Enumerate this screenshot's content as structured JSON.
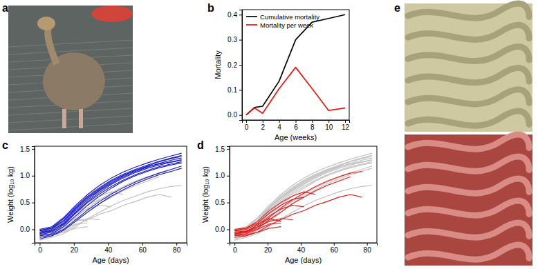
{
  "panel_labels": [
    "a",
    "b",
    "c",
    "d",
    "e"
  ],
  "chart_data": [
    {
      "type": "line",
      "xlabel": "Age (weeks)",
      "ylabel": "Mortality",
      "x": [
        0,
        1,
        2,
        4,
        6,
        8,
        10,
        12
      ],
      "series": [
        {
          "name": "Cumulative mortality",
          "color": "#000000",
          "values": [
            0,
            0.03,
            0.035,
            0.135,
            0.3,
            0.37,
            0.385,
            0.4
          ]
        },
        {
          "name": "Mortality per week",
          "color": "#e8170f",
          "values": [
            0,
            0.028,
            0.007,
            0.105,
            0.19,
            0.105,
            0.018,
            0.028
          ]
        }
      ],
      "xlim": [
        -0.5,
        12.5
      ],
      "xticks": [
        0,
        2,
        4,
        6,
        8,
        10,
        12
      ],
      "ylim": [
        -0.02,
        0.42
      ],
      "yticks": [
        {
          "value": 0,
          "label": "0.0"
        },
        {
          "value": 0.1,
          "label": "0.1"
        },
        {
          "value": 0.2,
          "label": "0.2"
        },
        {
          "value": 0.3,
          "label": "0.3"
        },
        {
          "value": 0.4,
          "label": "0.4"
        }
      ],
      "legend": "upper left"
    },
    {
      "type": "line",
      "xlabel": "Age (days)",
      "ylabel": "Weight (log₁₀ kg)",
      "x": [
        0,
        7,
        14,
        21,
        28,
        35,
        42,
        49,
        56,
        63,
        70,
        77,
        83
      ],
      "series": [
        {
          "color": "#bdbdbd",
          "values": [
            -0.05,
            -0.03,
            0.05,
            0.15,
            0.2,
            0.18,
            null,
            null,
            null,
            null,
            null,
            null,
            null
          ]
        },
        {
          "color": "#bdbdbd",
          "values": [
            -0.1,
            -0.08,
            0.0,
            0.1,
            0.12,
            null,
            null,
            null,
            null,
            null,
            null,
            null,
            null
          ]
        },
        {
          "color": "#bdbdbd",
          "values": [
            -0.02,
            0.02,
            0.15,
            0.35,
            0.5,
            0.62,
            0.7,
            0.65,
            null,
            null,
            null,
            null,
            null
          ]
        },
        {
          "color": "#bdbdbd",
          "values": [
            -0.08,
            -0.05,
            0.05,
            0.22,
            0.4,
            0.55,
            0.68,
            0.8,
            0.9,
            0.98,
            1.05,
            1.08,
            null
          ]
        },
        {
          "color": "#bdbdbd",
          "values": [
            -0.12,
            -0.1,
            -0.05,
            0.02,
            0.05,
            null,
            null,
            null,
            null,
            null,
            null,
            null,
            null
          ]
        },
        {
          "color": "#bdbdbd",
          "values": [
            0.0,
            0.03,
            0.12,
            0.3,
            0.45,
            0.56,
            0.6,
            null,
            null,
            null,
            null,
            null,
            null
          ]
        },
        {
          "color": "#bdbdbd",
          "values": [
            -0.06,
            -0.04,
            0.08,
            0.25,
            0.38,
            0.45,
            0.42,
            null,
            null,
            null,
            null,
            null,
            null
          ]
        },
        {
          "color": "#bdbdbd",
          "values": [
            -0.15,
            -0.12,
            -0.05,
            0.08,
            0.18,
            0.28,
            0.35,
            0.45,
            0.52,
            0.6,
            0.65,
            0.6,
            null
          ]
        },
        {
          "color": "#bdbdbd",
          "values": [
            -0.03,
            0.0,
            0.1,
            0.2,
            0.15,
            null,
            null,
            null,
            null,
            null,
            null,
            null,
            null
          ]
        },
        {
          "color": "#bdbdbd",
          "values": [
            -0.09,
            -0.06,
            0.02,
            0.18,
            0.32,
            0.48,
            0.6,
            0.72,
            0.82,
            0.9,
            0.98,
            null,
            null
          ]
        },
        {
          "color": "#bdbdbd",
          "values": [
            -0.2,
            -0.15,
            -0.08,
            0.05,
            0.2,
            0.32,
            0.44,
            0.54,
            0.62,
            0.7,
            0.76,
            0.8,
            0.82
          ]
        },
        {
          "color": "#1414c8",
          "values": [
            -0.08,
            -0.03,
            0.12,
            0.35,
            0.55,
            0.72,
            0.86,
            0.98,
            1.08,
            1.16,
            1.23,
            1.29,
            1.33
          ]
        },
        {
          "color": "#1414c8",
          "values": [
            -0.02,
            0.03,
            0.2,
            0.42,
            0.62,
            0.78,
            0.92,
            1.03,
            1.12,
            1.2,
            1.27,
            1.33,
            1.38
          ]
        },
        {
          "color": "#1414c8",
          "values": [
            -0.12,
            -0.08,
            0.05,
            0.25,
            0.45,
            0.62,
            0.77,
            0.9,
            1.0,
            1.08,
            1.15,
            1.2,
            1.24
          ]
        },
        {
          "color": "#1414c8",
          "values": [
            -0.05,
            0.0,
            0.15,
            0.38,
            0.58,
            0.74,
            0.88,
            1.0,
            1.1,
            1.18,
            1.26,
            1.32,
            1.36
          ]
        },
        {
          "color": "#1414c8",
          "values": [
            -0.1,
            -0.05,
            0.08,
            0.3,
            0.5,
            0.66,
            0.8,
            0.92,
            1.02,
            1.1,
            1.17,
            1.22,
            1.26
          ]
        },
        {
          "color": "#1414c8",
          "values": [
            0.0,
            0.05,
            0.22,
            0.45,
            0.65,
            0.82,
            0.96,
            1.07,
            1.16,
            1.24,
            1.31,
            1.37,
            1.42
          ]
        },
        {
          "color": "#1414c8",
          "values": [
            -0.15,
            -0.1,
            0.0,
            0.18,
            0.36,
            0.52,
            0.66,
            0.78,
            0.88,
            0.97,
            1.05,
            1.12,
            1.18
          ]
        },
        {
          "color": "#1414c8",
          "values": [
            -0.06,
            -0.02,
            0.1,
            0.32,
            0.52,
            0.69,
            0.84,
            0.96,
            1.06,
            1.14,
            1.2,
            1.25,
            1.29
          ]
        },
        {
          "color": "#1414c8",
          "values": [
            -0.03,
            0.02,
            0.17,
            0.4,
            0.6,
            0.76,
            0.9,
            1.01,
            1.1,
            1.17,
            1.22,
            1.26,
            1.3
          ]
        },
        {
          "color": "#1414c8",
          "values": [
            -0.18,
            -0.12,
            -0.02,
            0.15,
            0.32,
            0.48,
            0.62,
            0.74,
            0.85,
            0.94,
            1.02,
            1.08,
            1.14
          ]
        }
      ],
      "xlim": [
        -3,
        86
      ],
      "xticks": [
        0,
        20,
        40,
        60,
        80
      ],
      "ylim": [
        -0.25,
        1.55
      ],
      "yticks": [
        {
          "value": 0,
          "label": "0.0"
        },
        {
          "value": 0.5,
          "label": "0.5"
        },
        {
          "value": 1,
          "label": "1.0"
        },
        {
          "value": 1.5,
          "label": "1.5"
        }
      ]
    },
    {
      "type": "line",
      "xlabel": "Age (days)",
      "ylabel": "Weight (log₁₀ kg)",
      "x": [
        0,
        7,
        14,
        21,
        28,
        35,
        42,
        49,
        56,
        63,
        70,
        77,
        83
      ],
      "series": [
        {
          "color": "#bdbdbd",
          "values": [
            -0.08,
            -0.03,
            0.12,
            0.35,
            0.55,
            0.72,
            0.86,
            0.98,
            1.08,
            1.16,
            1.23,
            1.29,
            1.33
          ]
        },
        {
          "color": "#bdbdbd",
          "values": [
            -0.02,
            0.03,
            0.2,
            0.42,
            0.62,
            0.78,
            0.92,
            1.03,
            1.12,
            1.2,
            1.27,
            1.33,
            1.38
          ]
        },
        {
          "color": "#bdbdbd",
          "values": [
            -0.12,
            -0.08,
            0.05,
            0.25,
            0.45,
            0.62,
            0.77,
            0.9,
            1.0,
            1.08,
            1.15,
            1.2,
            1.24
          ]
        },
        {
          "color": "#bdbdbd",
          "values": [
            -0.05,
            0.0,
            0.15,
            0.38,
            0.58,
            0.74,
            0.88,
            1.0,
            1.1,
            1.18,
            1.26,
            1.32,
            1.36
          ]
        },
        {
          "color": "#bdbdbd",
          "values": [
            -0.1,
            -0.05,
            0.08,
            0.3,
            0.5,
            0.66,
            0.8,
            0.92,
            1.02,
            1.1,
            1.17,
            1.22,
            1.26
          ]
        },
        {
          "color": "#bdbdbd",
          "values": [
            0.0,
            0.05,
            0.22,
            0.45,
            0.65,
            0.82,
            0.96,
            1.07,
            1.16,
            1.24,
            1.31,
            1.37,
            1.42
          ]
        },
        {
          "color": "#bdbdbd",
          "values": [
            -0.15,
            -0.1,
            0.0,
            0.18,
            0.36,
            0.52,
            0.66,
            0.78,
            0.88,
            0.97,
            1.05,
            1.12,
            1.18
          ]
        },
        {
          "color": "#bdbdbd",
          "values": [
            -0.06,
            -0.02,
            0.1,
            0.32,
            0.52,
            0.69,
            0.84,
            0.96,
            1.06,
            1.14,
            1.2,
            1.25,
            1.29
          ]
        },
        {
          "color": "#bdbdbd",
          "values": [
            -0.03,
            0.02,
            0.17,
            0.4,
            0.6,
            0.76,
            0.9,
            1.01,
            1.1,
            1.17,
            1.22,
            1.26,
            1.3
          ]
        },
        {
          "color": "#bdbdbd",
          "values": [
            -0.18,
            -0.12,
            -0.02,
            0.15,
            0.32,
            0.48,
            0.62,
            0.74,
            0.85,
            0.94,
            1.02,
            1.08,
            1.14
          ]
        },
        {
          "color": "#bdbdbd",
          "values": [
            -0.2,
            -0.15,
            -0.08,
            0.05,
            0.2,
            0.32,
            0.44,
            0.54,
            0.62,
            0.7,
            0.76,
            0.8,
            0.82
          ]
        },
        {
          "color": "#ee1111",
          "values": [
            -0.05,
            -0.03,
            0.05,
            0.15,
            0.2,
            0.18,
            null,
            null,
            null,
            null,
            null,
            null,
            null
          ]
        },
        {
          "color": "#ee1111",
          "values": [
            -0.1,
            -0.08,
            0.0,
            0.1,
            0.12,
            null,
            null,
            null,
            null,
            null,
            null,
            null,
            null
          ]
        },
        {
          "color": "#ee1111",
          "values": [
            -0.02,
            0.02,
            0.15,
            0.35,
            0.5,
            0.62,
            0.7,
            0.65,
            null,
            null,
            null,
            null,
            null
          ]
        },
        {
          "color": "#ee1111",
          "values": [
            -0.08,
            -0.05,
            0.05,
            0.22,
            0.4,
            0.55,
            0.68,
            0.8,
            0.9,
            0.98,
            1.05,
            1.08,
            null
          ]
        },
        {
          "color": "#ee1111",
          "values": [
            -0.12,
            -0.1,
            -0.05,
            0.02,
            0.05,
            null,
            null,
            null,
            null,
            null,
            null,
            null,
            null
          ]
        },
        {
          "color": "#ee1111",
          "values": [
            0.0,
            0.03,
            0.12,
            0.3,
            0.45,
            0.56,
            0.6,
            null,
            null,
            null,
            null,
            null,
            null
          ]
        },
        {
          "color": "#ee1111",
          "values": [
            -0.06,
            -0.04,
            0.08,
            0.25,
            0.38,
            0.45,
            0.42,
            null,
            null,
            null,
            null,
            null,
            null
          ]
        },
        {
          "color": "#ee1111",
          "values": [
            -0.15,
            -0.12,
            -0.05,
            0.08,
            0.18,
            0.28,
            0.35,
            0.45,
            0.52,
            0.6,
            0.65,
            0.6,
            null
          ]
        },
        {
          "color": "#ee1111",
          "values": [
            -0.03,
            0.0,
            0.1,
            0.2,
            0.15,
            null,
            null,
            null,
            null,
            null,
            null,
            null,
            null
          ]
        },
        {
          "color": "#ee1111",
          "values": [
            -0.09,
            -0.06,
            0.02,
            0.18,
            0.32,
            0.48,
            0.6,
            0.72,
            0.82,
            0.9,
            0.98,
            null,
            null
          ]
        }
      ],
      "xlim": [
        -3,
        86
      ],
      "xticks": [
        0,
        20,
        40,
        60,
        80
      ],
      "ylim": [
        -0.25,
        1.55
      ],
      "yticks": [
        {
          "value": 0,
          "label": "0.0"
        },
        {
          "value": 0.5,
          "label": "0.5"
        },
        {
          "value": 1,
          "label": "1.0"
        },
        {
          "value": 1.5,
          "label": "1.5"
        }
      ]
    }
  ]
}
